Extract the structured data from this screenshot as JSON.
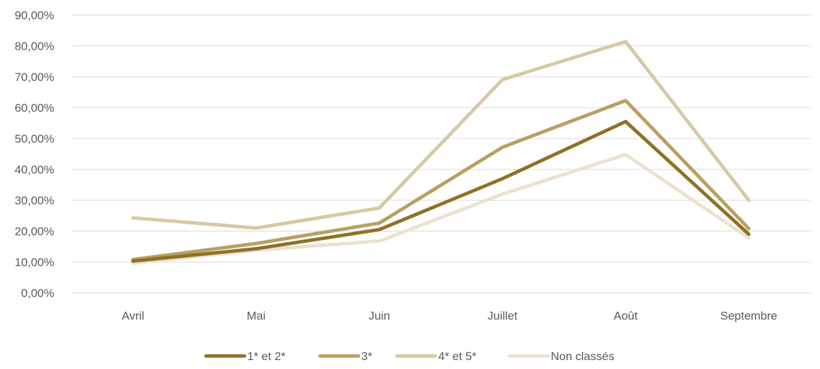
{
  "chart_data": {
    "type": "line",
    "categories": [
      "Avril",
      "Mai",
      "Juin",
      "Juillet",
      "Août",
      "Septembre"
    ],
    "y_ticks": [
      "0,00%",
      "10,00%",
      "20,00%",
      "30,00%",
      "40,00%",
      "50,00%",
      "60,00%",
      "70,00%",
      "80,00%",
      "90,00%"
    ],
    "ylim": [
      0,
      90
    ],
    "grid": true,
    "legend_position": "bottom",
    "series": [
      {
        "name": "1* et 2*",
        "color": "#8F7126",
        "values": [
          10.3,
          14.3,
          20.5,
          37.0,
          55.5,
          19.0
        ]
      },
      {
        "name": "3*",
        "color": "#B8A060",
        "values": [
          10.8,
          16.0,
          22.6,
          47.2,
          62.3,
          20.8
        ]
      },
      {
        "name": "4* et 5*",
        "color": "#D6C9A3",
        "values": [
          24.3,
          21.0,
          27.5,
          69.1,
          81.4,
          30.0
        ]
      },
      {
        "name": "Non classés",
        "color": "#EAE2CF",
        "values": [
          9.6,
          13.8,
          16.8,
          32.0,
          44.8,
          17.8
        ]
      }
    ]
  }
}
